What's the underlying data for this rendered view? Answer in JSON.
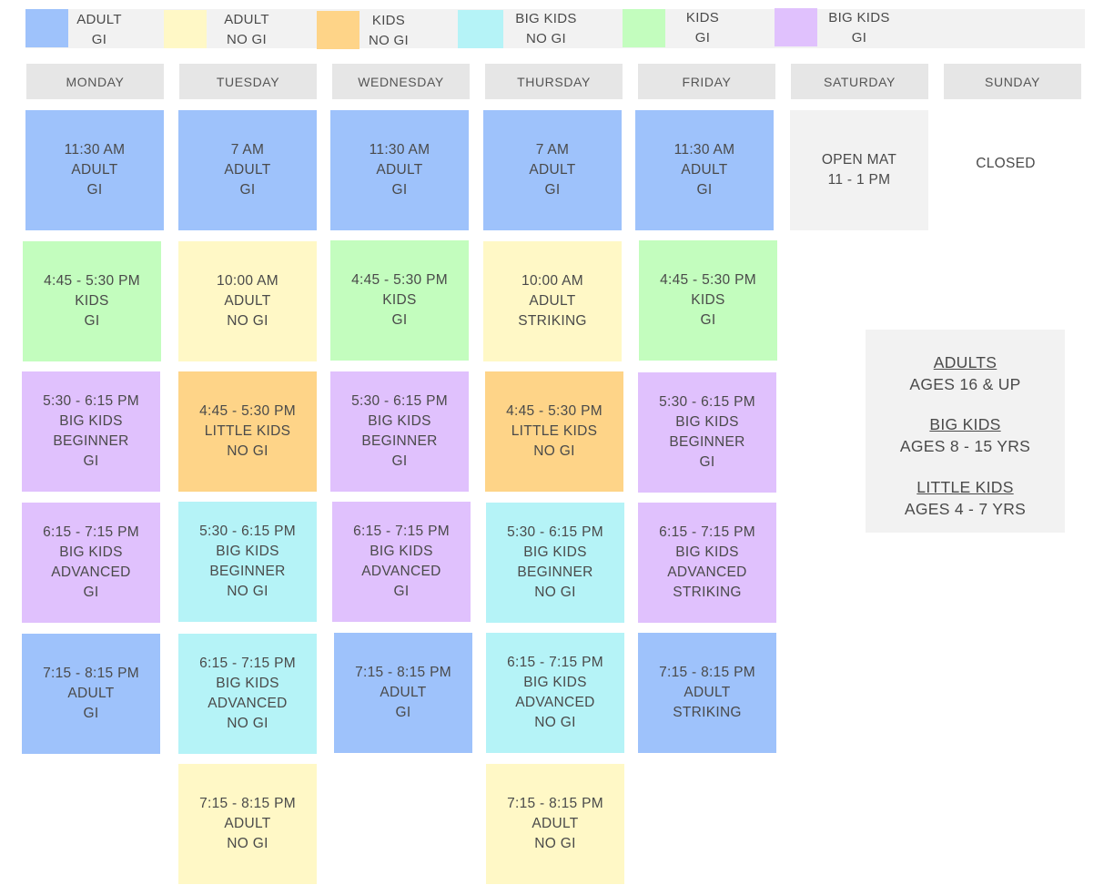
{
  "legend": [
    {
      "label": "ADULT\nGI",
      "color": "#9ec2fb"
    },
    {
      "label": "ADULT\nNO GI",
      "color": "#fff8c6"
    },
    {
      "label": "KIDS\nNO GI",
      "color": "#fed488"
    },
    {
      "label": "BIG KIDS\nNO GI",
      "color": "#b5f3f7"
    },
    {
      "label": "KIDS\nGI",
      "color": "#c3fdbe"
    },
    {
      "label": "BIG KIDS\nGI",
      "color": "#e0c1fd"
    }
  ],
  "days": [
    "MONDAY",
    "TUESDAY",
    "WEDNESDAY",
    "THURSDAY",
    "FRIDAY",
    "SATURDAY",
    "SUNDAY"
  ],
  "classes": {
    "monday": [
      "11:30 AM\nADULT\nGI",
      "4:45 - 5:30 PM\nKIDS\nGI",
      "5:30 - 6:15 PM\nBIG KIDS\nBEGINNER\nGI",
      "6:15 - 7:15 PM\nBIG KIDS\nADVANCED\nGI",
      "7:15 - 8:15 PM\nADULT\nGI"
    ],
    "tuesday": [
      "7 AM\nADULT\nGI",
      "10:00 AM\nADULT\nNO GI",
      "4:45 - 5:30 PM\nLITTLE KIDS\nNO GI",
      "5:30 - 6:15 PM\nBIG KIDS\nBEGINNER\nNO GI",
      "6:15 - 7:15 PM\nBIG KIDS\nADVANCED\nNO GI",
      "7:15 - 8:15 PM\nADULT\nNO GI"
    ],
    "wednesday": [
      "11:30 AM\nADULT\nGI",
      "4:45 - 5:30 PM\nKIDS\nGI",
      "5:30 - 6:15 PM\nBIG KIDS\nBEGINNER\nGI",
      "6:15 - 7:15 PM\nBIG KIDS\nADVANCED\nGI",
      "7:15 - 8:15 PM\nADULT\nGI"
    ],
    "thursday": [
      "7 AM\nADULT\nGI",
      "10:00 AM\nADULT\nSTRIKING",
      "4:45 - 5:30 PM\nLITTLE KIDS\nNO GI",
      "5:30 - 6:15 PM\nBIG KIDS\nBEGINNER\nNO GI",
      "6:15 - 7:15 PM\nBIG KIDS\nADVANCED\nNO GI",
      "7:15 - 8:15 PM\nADULT\nNO GI"
    ],
    "friday": [
      "11:30 AM\nADULT\nGI",
      "4:45 - 5:30 PM\nKIDS\nGI",
      "5:30 - 6:15 PM\nBIG KIDS\nBEGINNER\nGI",
      "6:15 - 7:15 PM\nBIG KIDS\nADVANCED\nSTRIKING",
      "7:15 - 8:15 PM\nADULT\nSTRIKING"
    ],
    "saturday": [
      "OPEN MAT\n11 - 1 PM"
    ],
    "sunday": [
      "CLOSED"
    ]
  },
  "info": {
    "adults_title": "ADULTS",
    "adults_ages": "AGES 16 & UP",
    "bigkids_title": "BIG KIDS",
    "bigkids_ages": "AGES 8 - 15 YRS",
    "littlekids_title": "LITTLE KIDS",
    "littlekids_ages": "AGES 4 - 7 YRS"
  }
}
